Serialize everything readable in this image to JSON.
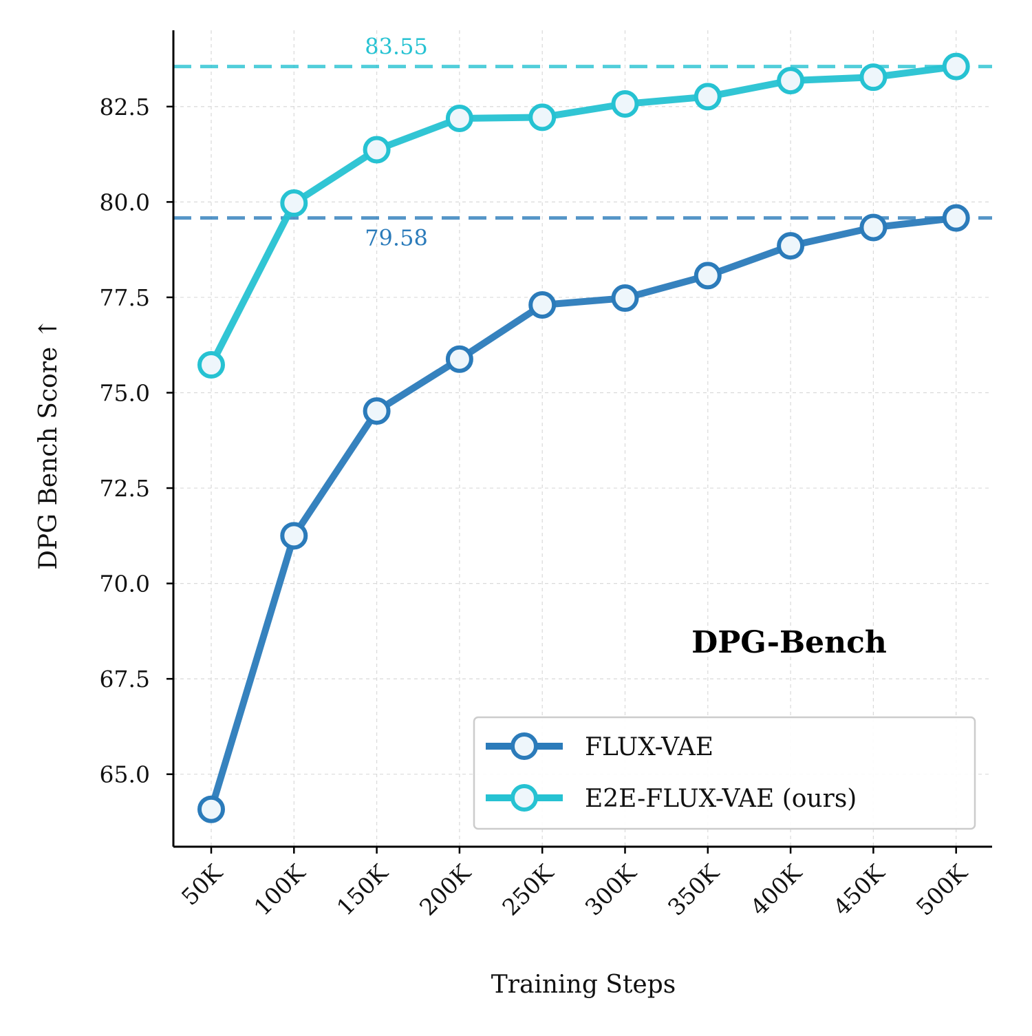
{
  "chart_data": {
    "type": "line",
    "title": "DPG-Bench",
    "xlabel": "Training Steps",
    "ylabel": "DPG Bench Score ↑",
    "categories": [
      "50K",
      "100K",
      "150K",
      "200K",
      "250K",
      "300K",
      "350K",
      "400K",
      "450K",
      "500K"
    ],
    "ylim": [
      63.1,
      84.5
    ],
    "yticks": [
      65.0,
      67.5,
      70.0,
      72.5,
      75.0,
      77.5,
      80.0,
      82.5
    ],
    "ytick_labels": [
      "65.0",
      "67.5",
      "70.0",
      "72.5",
      "75.0",
      "77.5",
      "80.0",
      "82.5"
    ],
    "grid": true,
    "legend_position": "lower-right",
    "series": [
      {
        "name": "FLUX-VAE",
        "color": "#2b7bba",
        "values": [
          64.08,
          71.25,
          74.52,
          75.88,
          77.3,
          77.48,
          78.07,
          78.85,
          79.33,
          79.58
        ]
      },
      {
        "name": "E2E-FLUX-VAE (ours)",
        "color": "#26c2d2",
        "values": [
          75.73,
          79.97,
          81.37,
          82.19,
          82.22,
          82.57,
          82.76,
          83.18,
          83.27,
          83.55
        ]
      }
    ],
    "reference_lines": [
      {
        "value": 83.55,
        "label": "83.55",
        "color": "#26c2d2"
      },
      {
        "value": 79.58,
        "label": "79.58",
        "color": "#2b7bba"
      }
    ]
  }
}
